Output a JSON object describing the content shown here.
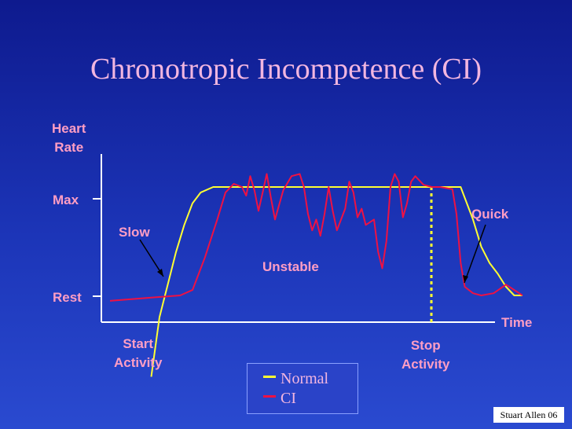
{
  "chart_data": {
    "type": "line",
    "title": "Chronotropic Incompetence (CI)",
    "ylabel": "Heart Rate",
    "xlabel": "Time",
    "y_ticks": [
      "Max",
      "Rest"
    ],
    "x_markers": [
      "Start Activity",
      "Stop Activity"
    ],
    "annotations": [
      "Slow",
      "Unstable",
      "Quick"
    ],
    "legend": {
      "placement": "bottom-center",
      "entries": [
        "Normal",
        "CI"
      ]
    },
    "series": [
      {
        "name": "Normal",
        "color": "#ffff33",
        "x": [
          0.1,
          0.12,
          0.14,
          0.16,
          0.18,
          0.2,
          0.22,
          0.25,
          0.28,
          0.33,
          0.4,
          0.5,
          0.6,
          0.7,
          0.8,
          0.85,
          0.88,
          0.9,
          0.92,
          0.94,
          0.96,
          0.98,
          1.0
        ],
        "y": [
          -0.75,
          -0.2,
          0.1,
          0.4,
          0.65,
          0.85,
          0.95,
          1.0,
          1.0,
          1.0,
          1.0,
          1.0,
          1.0,
          1.0,
          1.0,
          1.0,
          0.7,
          0.45,
          0.3,
          0.2,
          0.08,
          0.0,
          0.0
        ]
      },
      {
        "name": "CI",
        "color": "#ee1144",
        "x": [
          0.0,
          0.1,
          0.17,
          0.2,
          0.23,
          0.26,
          0.28,
          0.3,
          0.32,
          0.33,
          0.34,
          0.35,
          0.36,
          0.37,
          0.38,
          0.39,
          0.4,
          0.42,
          0.44,
          0.46,
          0.47,
          0.48,
          0.49,
          0.5,
          0.51,
          0.52,
          0.53,
          0.54,
          0.55,
          0.57,
          0.58,
          0.59,
          0.6,
          0.61,
          0.62,
          0.64,
          0.65,
          0.66,
          0.67,
          0.68,
          0.69,
          0.7,
          0.71,
          0.72,
          0.73,
          0.74,
          0.76,
          0.78,
          0.8,
          0.83,
          0.84,
          0.85,
          0.86,
          0.88,
          0.9,
          0.93,
          0.96,
          1.0
        ],
        "y": [
          -0.05,
          -0.02,
          0.0,
          0.05,
          0.35,
          0.7,
          0.95,
          1.03,
          1.0,
          0.92,
          1.1,
          0.97,
          0.78,
          0.95,
          1.12,
          0.9,
          0.7,
          0.97,
          1.1,
          1.12,
          1.0,
          0.75,
          0.6,
          0.7,
          0.55,
          0.75,
          1.0,
          0.78,
          0.6,
          0.8,
          1.05,
          0.95,
          0.72,
          0.8,
          0.65,
          0.7,
          0.4,
          0.25,
          0.5,
          1.0,
          1.12,
          1.05,
          0.72,
          0.85,
          1.05,
          1.1,
          1.02,
          1.0,
          1.0,
          0.98,
          0.75,
          0.3,
          0.08,
          0.02,
          0.0,
          0.02,
          0.1,
          0.0
        ]
      }
    ]
  },
  "labels": {
    "heart_rate": "Heart\nRate",
    "max": "Max",
    "rest": "Rest",
    "time": "Time",
    "start_activity": "Start\nActivity",
    "stop_activity": "Stop\nActivity",
    "slow": "Slow",
    "unstable": "Unstable",
    "quick": "Quick"
  },
  "legend_items": [
    {
      "label": "Normal",
      "color": "#ffff33"
    },
    {
      "label": "CI",
      "color": "#ee1144"
    }
  ],
  "credit": "Stuart Allen 06"
}
